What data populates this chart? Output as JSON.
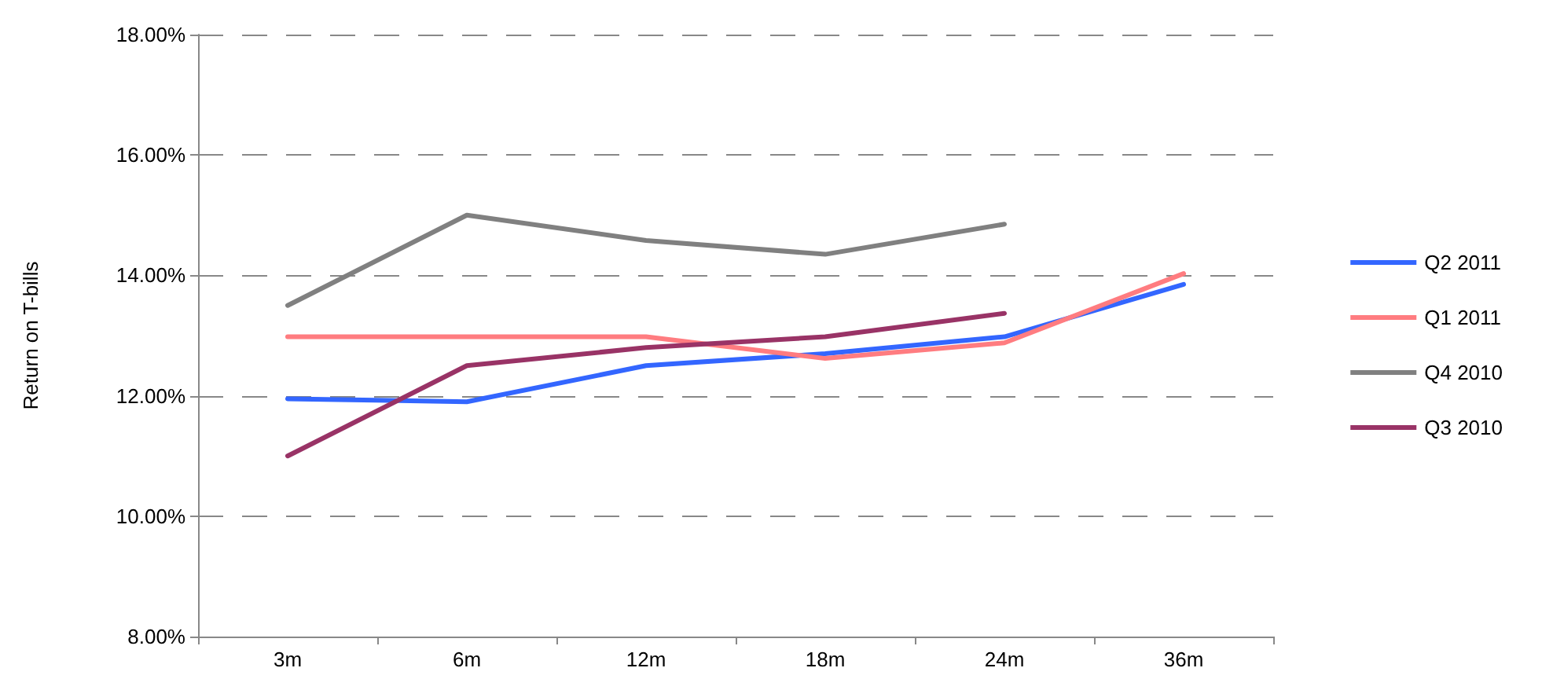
{
  "chart_data": {
    "type": "line",
    "ylabel": "Return on T-bills",
    "categories": [
      "3m",
      "6m",
      "12m",
      "18m",
      "24m",
      "36m"
    ],
    "series": [
      {
        "name": "Q2 2011",
        "color": "#3366ff",
        "values": [
          11.95,
          11.9,
          12.5,
          12.7,
          12.98,
          13.85
        ]
      },
      {
        "name": "Q1 2011",
        "color": "#ff7c80",
        "values": [
          12.98,
          12.98,
          12.98,
          12.62,
          12.88,
          14.03
        ]
      },
      {
        "name": "Q4 2010",
        "color": "#808080",
        "values": [
          13.5,
          15.0,
          14.58,
          14.35,
          14.85,
          null
        ]
      },
      {
        "name": "Q3 2010",
        "color": "#993366",
        "values": [
          11.0,
          12.5,
          12.8,
          12.98,
          13.37,
          null
        ]
      }
    ],
    "ylim": [
      8,
      18
    ],
    "yticks": [
      {
        "value": 8,
        "label": "8.00%"
      },
      {
        "value": 10,
        "label": "10.00%"
      },
      {
        "value": 12,
        "label": "12.00%"
      },
      {
        "value": 14,
        "label": "14.00%"
      },
      {
        "value": 16,
        "label": "16.00%"
      },
      {
        "value": 18,
        "label": "18.00%"
      }
    ],
    "grid": "y",
    "legend": "right",
    "marker": "none",
    "line_style": "solid"
  }
}
